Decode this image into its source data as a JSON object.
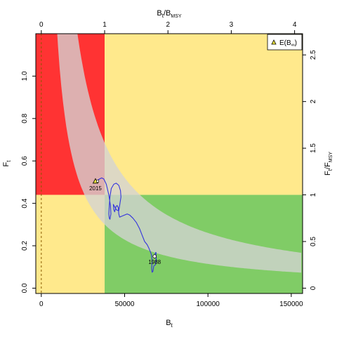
{
  "chart_data": {
    "type": "line",
    "title": "",
    "xlabel": "B",
    "xlabel_sub": "t",
    "ylabel": "F",
    "ylabel_sub": "t",
    "top_axis_label": "B",
    "top_axis_label_sub": "t",
    "top_axis_label_div": "/B",
    "top_axis_label_div_sub": "MSY",
    "right_axis_label": "F",
    "right_axis_label_sub": "t",
    "right_axis_label_div": "/F",
    "right_axis_label_div_sub": "MSY",
    "xlim": [
      -3300,
      156800
    ],
    "ylim": [
      -0.025,
      1.2
    ],
    "x_ticks": [
      0,
      50000,
      100000,
      150000
    ],
    "y_ticks": [
      0.0,
      0.2,
      0.4,
      0.6,
      0.8,
      1.0
    ],
    "bmsy": 38000,
    "fmsy": 0.44,
    "top_ticks": [
      0,
      1,
      2,
      3,
      4
    ],
    "right_ticks": [
      0,
      0.5,
      1,
      1.5,
      2,
      2.5
    ],
    "zone_colors": {
      "red": "#ff3333",
      "yellow": "#ffe98c",
      "green": "#80cc66",
      "band": "#d4d4d4"
    },
    "band": {
      "k": 16800,
      "lower_factor": 0.68,
      "upper_factor": 1.55
    },
    "trajectory_color": "#3333dd",
    "trajectory": {
      "x": [
        67500,
        67000,
        66500,
        66200,
        66500,
        66000,
        64500,
        63500,
        62000,
        60500,
        59000,
        57000,
        55000,
        53000,
        51500,
        50000,
        48500,
        47000,
        46500,
        46200,
        45500,
        44800,
        44000,
        43500,
        43200,
        45000,
        46500,
        47200,
        47800,
        47500,
        46500,
        45000,
        43500,
        42000,
        41200,
        40800,
        40500,
        40800,
        41200,
        41800,
        41500,
        40500,
        39000,
        37500,
        36200,
        35000,
        34000,
        33000
      ],
      "y": [
        0.105,
        0.08,
        0.075,
        0.095,
        0.13,
        0.16,
        0.19,
        0.205,
        0.22,
        0.25,
        0.28,
        0.31,
        0.33,
        0.345,
        0.35,
        0.345,
        0.34,
        0.335,
        0.35,
        0.38,
        0.39,
        0.385,
        0.36,
        0.37,
        0.395,
        0.37,
        0.365,
        0.4,
        0.43,
        0.46,
        0.485,
        0.495,
        0.49,
        0.47,
        0.43,
        0.39,
        0.35,
        0.33,
        0.325,
        0.35,
        0.39,
        0.44,
        0.49,
        0.515,
        0.52,
        0.515,
        0.51,
        0.505
      ]
    },
    "loop_lower": {
      "x": [
        67500,
        68500,
        69000,
        68800,
        68200,
        67500
      ],
      "y": [
        0.105,
        0.11,
        0.14,
        0.17,
        0.16,
        0.15
      ]
    },
    "end_point": {
      "label": "2015",
      "x": 32500,
      "y": 0.505
    },
    "start_point": {
      "label": "1988",
      "x": 68000,
      "y": 0.15
    },
    "legend": {
      "label": "E(B",
      "label_sub": "∞",
      "label_end": ")",
      "position": "top-right"
    }
  }
}
